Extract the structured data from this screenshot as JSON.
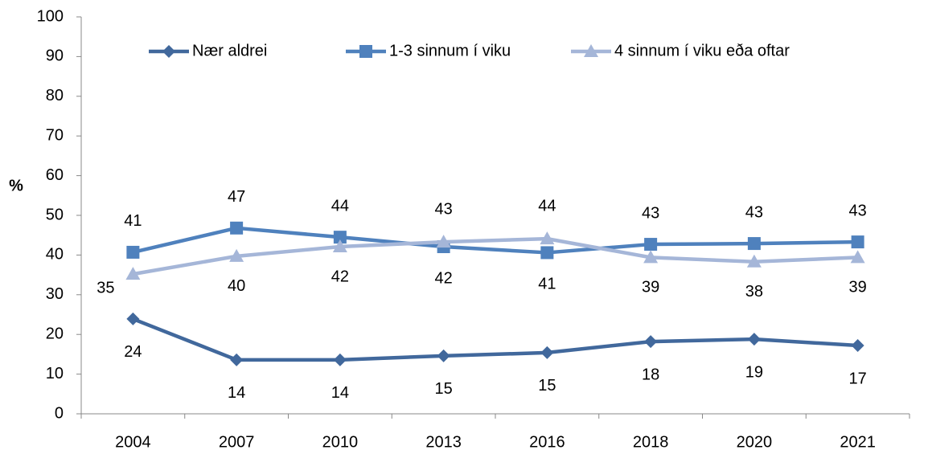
{
  "chart_data": {
    "type": "line",
    "y_label": "%",
    "categories": [
      "2004",
      "2007",
      "2010",
      "2013",
      "2016",
      "2018",
      "2020",
      "2021"
    ],
    "series": [
      {
        "name": "Nær aldrei",
        "color": "#41689c",
        "marker": "diamond",
        "values": [
          23.9,
          13.6,
          13.6,
          14.6,
          15.4,
          18.2,
          18.8,
          17.2
        ],
        "value_labels": [
          "24",
          "14",
          "14",
          "15",
          "15",
          "18",
          "19",
          "17"
        ]
      },
      {
        "name": "1-3 sinnum í viku",
        "color": "#4f81bd",
        "marker": "square",
        "values": [
          40.7,
          46.8,
          44.5,
          42.1,
          40.6,
          42.7,
          42.9,
          43.3
        ],
        "value_labels": [
          "41",
          "47",
          "44",
          "42",
          "41",
          "43",
          "43",
          "43"
        ]
      },
      {
        "name": "4 sinnum í viku eða oftar",
        "color": "#a5b6d8",
        "marker": "triangle",
        "values": [
          35.2,
          39.7,
          42.1,
          43.3,
          44.1,
          39.4,
          38.3,
          39.4
        ],
        "value_labels": [
          "35",
          "40",
          "42",
          "43",
          "44",
          "39",
          "38",
          "39"
        ]
      }
    ],
    "ylim": [
      0,
      100
    ],
    "yticks": [
      0,
      10,
      20,
      30,
      40,
      50,
      60,
      70,
      80,
      90,
      100
    ],
    "legend": "top"
  }
}
